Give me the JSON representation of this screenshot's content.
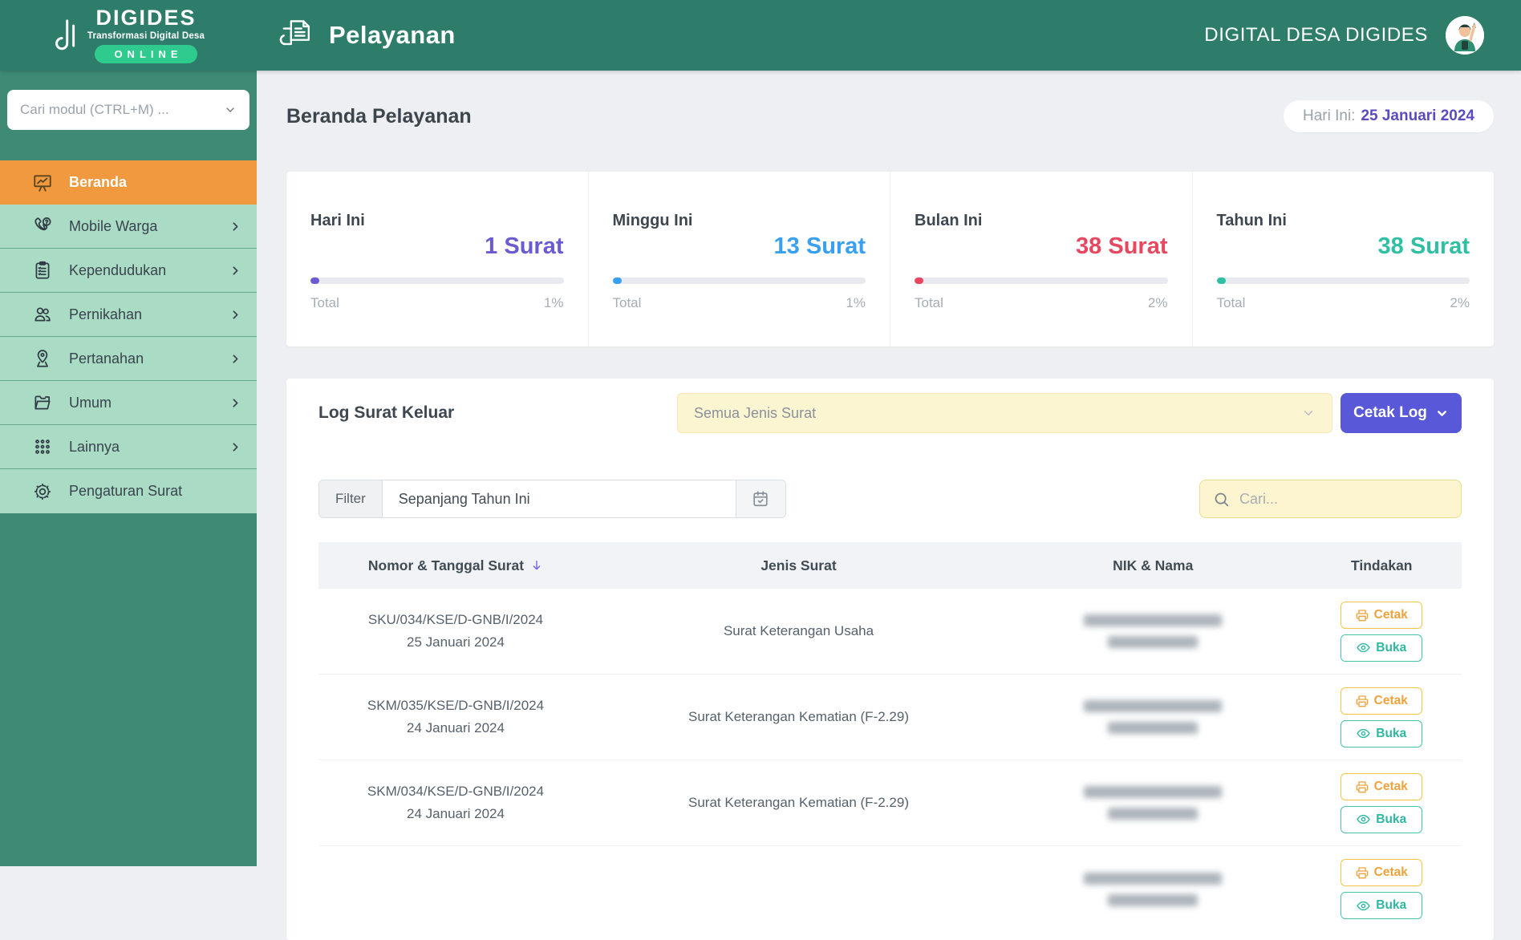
{
  "brand": {
    "name": "DIGIDES",
    "tagline": "Transformasi Digital Desa",
    "badge": "ONLINE"
  },
  "header": {
    "app_title": "Pelayanan",
    "account_name": "DIGITAL DESA DIGIDES"
  },
  "sidebar": {
    "search_placeholder": "Cari modul (CTRL+M) ...",
    "items": [
      {
        "label": "Beranda",
        "icon": "dashboard-icon",
        "active": true,
        "chevron": false
      },
      {
        "label": "Mobile Warga",
        "icon": "mobile-icon",
        "active": false,
        "chevron": true
      },
      {
        "label": "Kependudukan",
        "icon": "clipboard-icon",
        "active": false,
        "chevron": true
      },
      {
        "label": "Pernikahan",
        "icon": "people-icon",
        "active": false,
        "chevron": true
      },
      {
        "label": "Pertanahan",
        "icon": "map-pin-icon",
        "active": false,
        "chevron": true
      },
      {
        "label": "Umum",
        "icon": "folder-icon",
        "active": false,
        "chevron": true
      },
      {
        "label": "Lainnya",
        "icon": "grid-icon",
        "active": false,
        "chevron": true
      },
      {
        "label": "Pengaturan Surat",
        "icon": "gear-icon",
        "active": false,
        "chevron": false
      }
    ]
  },
  "page": {
    "title": "Beranda Pelayanan",
    "date_label": "Hari Ini:",
    "date_value": "25 Januari 2024"
  },
  "stats": [
    {
      "label": "Hari Ini",
      "value": "1 Surat",
      "color": "#6b5bd2",
      "total_label": "Total",
      "percent": "1%"
    },
    {
      "label": "Minggu Ini",
      "value": "13 Surat",
      "color": "#38a0f2",
      "total_label": "Total",
      "percent": "1%"
    },
    {
      "label": "Bulan Ini",
      "value": "38 Surat",
      "color": "#e7485f",
      "total_label": "Total",
      "percent": "2%"
    },
    {
      "label": "Tahun Ini",
      "value": "38 Surat",
      "color": "#2fc0a4",
      "total_label": "Total",
      "percent": "2%"
    }
  ],
  "log_section": {
    "title": "Log Surat Keluar",
    "type_filter_value": "Semua Jenis Surat",
    "print_button_label": "Cetak Log",
    "filter_label": "Filter",
    "period_value": "Sepanjang Tahun Ini",
    "search_placeholder": "Cari...",
    "table": {
      "columns": [
        "Nomor & Tanggal Surat",
        "Jenis Surat",
        "NIK & Nama",
        "Tindakan"
      ],
      "action_labels": {
        "print": "Cetak",
        "open": "Buka"
      },
      "rows": [
        {
          "number": "SKU/034/KSE/D-GNB/I/2024",
          "date": "25 Januari 2024",
          "type": "Surat Keterangan Usaha",
          "identity_redacted": true,
          "print_bold": false,
          "partial": false
        },
        {
          "number": "SKM/035/KSE/D-GNB/I/2024",
          "date": "24 Januari 2024",
          "type": "Surat Keterangan Kematian (F-2.29)",
          "identity_redacted": true,
          "print_bold": true,
          "partial": false
        },
        {
          "number": "SKM/034/KSE/D-GNB/I/2024",
          "date": "24 Januari 2024",
          "type": "Surat Keterangan Kematian (F-2.29)",
          "identity_redacted": true,
          "print_bold": true,
          "partial": false
        },
        {
          "number": "",
          "date": "",
          "type": "",
          "identity_redacted": true,
          "print_bold": false,
          "partial": true
        }
      ]
    }
  }
}
